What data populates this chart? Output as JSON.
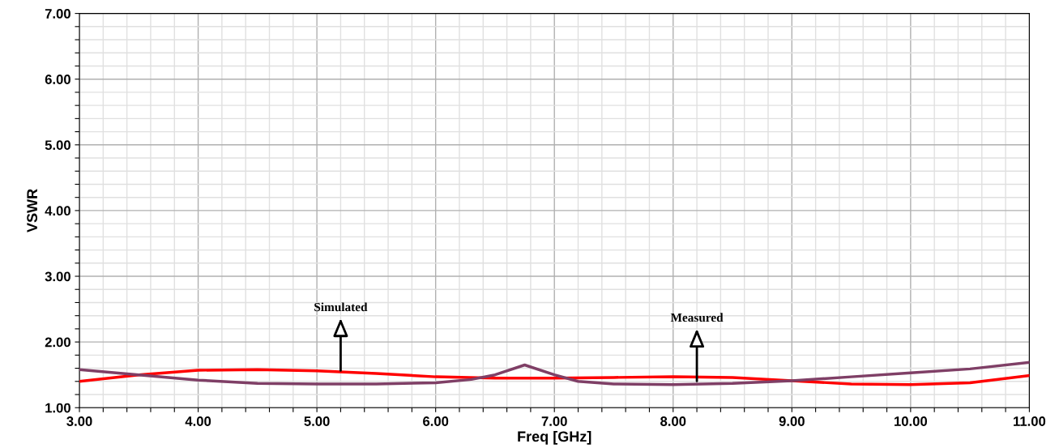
{
  "chart_data": {
    "type": "line",
    "xlabel": "Freq [GHz]",
    "ylabel": "VSWR",
    "xlim": [
      3,
      11
    ],
    "ylim": [
      1,
      7
    ],
    "xticks": [
      {
        "value": 3,
        "label": "3.00"
      },
      {
        "value": 3.2,
        "label": null
      },
      {
        "value": 3.4,
        "label": null
      },
      {
        "value": 3.6,
        "label": null
      },
      {
        "value": 3.8,
        "label": null
      },
      {
        "value": 4,
        "label": "4.00"
      },
      {
        "value": 4.2,
        "label": null
      },
      {
        "value": 4.4,
        "label": null
      },
      {
        "value": 4.6,
        "label": null
      },
      {
        "value": 4.8,
        "label": null
      },
      {
        "value": 5,
        "label": "5.00"
      },
      {
        "value": 5.2,
        "label": null
      },
      {
        "value": 5.4,
        "label": null
      },
      {
        "value": 5.6,
        "label": null
      },
      {
        "value": 5.8,
        "label": null
      },
      {
        "value": 6,
        "label": "6.00"
      },
      {
        "value": 6.2,
        "label": null
      },
      {
        "value": 6.4,
        "label": null
      },
      {
        "value": 6.6,
        "label": null
      },
      {
        "value": 6.8,
        "label": null
      },
      {
        "value": 7,
        "label": "7.00"
      },
      {
        "value": 7.2,
        "label": null
      },
      {
        "value": 7.4,
        "label": null
      },
      {
        "value": 7.6,
        "label": null
      },
      {
        "value": 7.8,
        "label": null
      },
      {
        "value": 8,
        "label": "8.00"
      },
      {
        "value": 8.2,
        "label": null
      },
      {
        "value": 8.4,
        "label": null
      },
      {
        "value": 8.6,
        "label": null
      },
      {
        "value": 8.8,
        "label": null
      },
      {
        "value": 9,
        "label": "9.00"
      },
      {
        "value": 9.2,
        "label": null
      },
      {
        "value": 9.4,
        "label": null
      },
      {
        "value": 9.6,
        "label": null
      },
      {
        "value": 9.8,
        "label": null
      },
      {
        "value": 10,
        "label": "10.00"
      },
      {
        "value": 10.2,
        "label": null
      },
      {
        "value": 10.4,
        "label": null
      },
      {
        "value": 10.6,
        "label": null
      },
      {
        "value": 10.8,
        "label": null
      },
      {
        "value": 11,
        "label": "11.00"
      }
    ],
    "yticks": [
      {
        "value": 1,
        "label": "1.00"
      },
      {
        "value": 1.2,
        "label": null
      },
      {
        "value": 1.4,
        "label": null
      },
      {
        "value": 1.6,
        "label": null
      },
      {
        "value": 1.8,
        "label": null
      },
      {
        "value": 2,
        "label": "2.00"
      },
      {
        "value": 2.2,
        "label": null
      },
      {
        "value": 2.4,
        "label": null
      },
      {
        "value": 2.6,
        "label": null
      },
      {
        "value": 2.8,
        "label": null
      },
      {
        "value": 3,
        "label": "3.00"
      },
      {
        "value": 3.2,
        "label": null
      },
      {
        "value": 3.4,
        "label": null
      },
      {
        "value": 3.6,
        "label": null
      },
      {
        "value": 3.8,
        "label": null
      },
      {
        "value": 4,
        "label": "4.00"
      },
      {
        "value": 4.2,
        "label": null
      },
      {
        "value": 4.4,
        "label": null
      },
      {
        "value": 4.6,
        "label": null
      },
      {
        "value": 4.8,
        "label": null
      },
      {
        "value": 5,
        "label": "5.00"
      },
      {
        "value": 5.2,
        "label": null
      },
      {
        "value": 5.4,
        "label": null
      },
      {
        "value": 5.6,
        "label": null
      },
      {
        "value": 5.8,
        "label": null
      },
      {
        "value": 6,
        "label": "6.00"
      },
      {
        "value": 6.2,
        "label": null
      },
      {
        "value": 6.4,
        "label": null
      },
      {
        "value": 6.6,
        "label": null
      },
      {
        "value": 6.8,
        "label": null
      },
      {
        "value": 7,
        "label": "7.00"
      }
    ],
    "grid": true,
    "legend": false,
    "marker": "none",
    "line_style": "solid",
    "series": [
      {
        "color": "#ff0000",
        "x": [
          3,
          3.5,
          4,
          4.5,
          5,
          5.5,
          6,
          6.5,
          7,
          7.5,
          8,
          8.5,
          9,
          9.5,
          10,
          10.5,
          11
        ],
        "values": [
          1.4,
          1.5,
          1.57,
          1.58,
          1.56,
          1.52,
          1.47,
          1.45,
          1.45,
          1.46,
          1.47,
          1.46,
          1.41,
          1.36,
          1.35,
          1.38,
          1.49
        ]
      },
      {
        "color": "#7f3f66",
        "x": [
          3,
          3.5,
          4,
          4.5,
          5,
          5.5,
          6,
          6.3,
          6.5,
          6.75,
          7,
          7.2,
          7.5,
          8,
          8.5,
          9,
          9.5,
          10,
          10.5,
          11
        ],
        "values": [
          1.58,
          1.5,
          1.42,
          1.37,
          1.36,
          1.36,
          1.38,
          1.43,
          1.5,
          1.65,
          1.5,
          1.4,
          1.36,
          1.35,
          1.37,
          1.41,
          1.47,
          1.53,
          1.59,
          1.69
        ]
      }
    ],
    "annotations": [
      {
        "text": "Simulated",
        "x": 5.2,
        "y": 1.53
      },
      {
        "text": "Measured",
        "x": 8.2,
        "y": 1.37
      }
    ]
  }
}
